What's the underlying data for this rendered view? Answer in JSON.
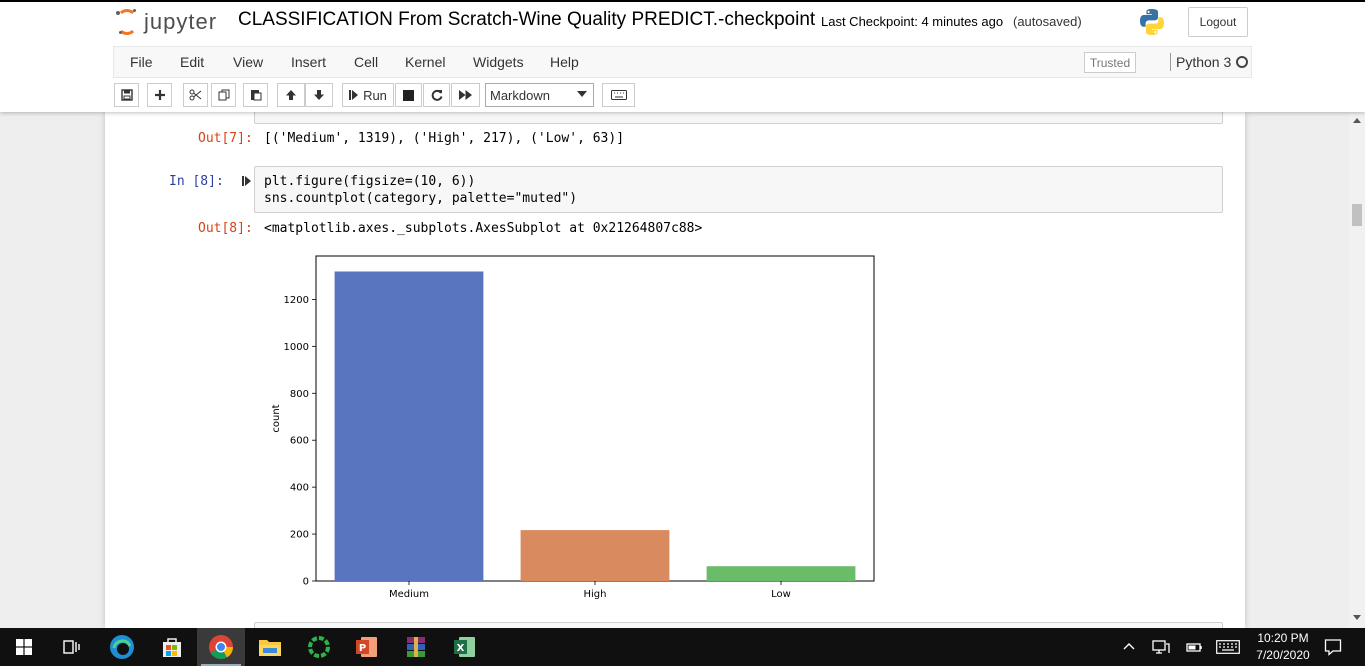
{
  "header": {
    "logo_text": "jupyter",
    "notebook_title": "CLASSIFICATION From Scratch-Wine Quality PREDICT.-checkpoint",
    "checkpoint": "Last Checkpoint: 4 minutes ago",
    "autosave_status": "(autosaved)",
    "logout_label": "Logout"
  },
  "menubar": {
    "items": [
      "File",
      "Edit",
      "View",
      "Insert",
      "Cell",
      "Kernel",
      "Widgets",
      "Help"
    ],
    "trusted_label": "Trusted",
    "kernel_name": "Python 3"
  },
  "toolbar": {
    "run_label": "Run",
    "cell_type": "Markdown"
  },
  "cells": {
    "partial_output": {
      "prompt": "Out[7]:",
      "text": "[('Medium', 1319), ('High', 217), ('Low', 63)]"
    },
    "cell8": {
      "in_prompt": "In [8]:",
      "code_line1": "plt.figure(figsize=(10, 6))",
      "code_line2": "sns.countplot(category, palette=\"muted\")",
      "out_prompt": "Out[8]:",
      "out_text": "<matplotlib.axes._subplots.AxesSubplot at 0x21264807c88>"
    }
  },
  "chart_data": {
    "type": "bar",
    "categories": [
      "Medium",
      "High",
      "Low"
    ],
    "values": [
      1319,
      217,
      63
    ],
    "colors": [
      "#5975BF",
      "#D98B5F",
      "#6ABC69"
    ],
    "title": "",
    "xlabel": "",
    "ylabel": "count",
    "ylim": [
      0,
      1385
    ],
    "yticks": [
      0,
      200,
      400,
      600,
      800,
      1000,
      1200
    ]
  },
  "taskbar": {
    "apps": [
      "windows-start",
      "task-view",
      "edge",
      "store",
      "chrome",
      "file-explorer",
      "green-circle-app",
      "powerpoint",
      "winrar",
      "excel"
    ],
    "active_app": "chrome",
    "time": "10:20 PM",
    "date": "7/20/2020"
  }
}
